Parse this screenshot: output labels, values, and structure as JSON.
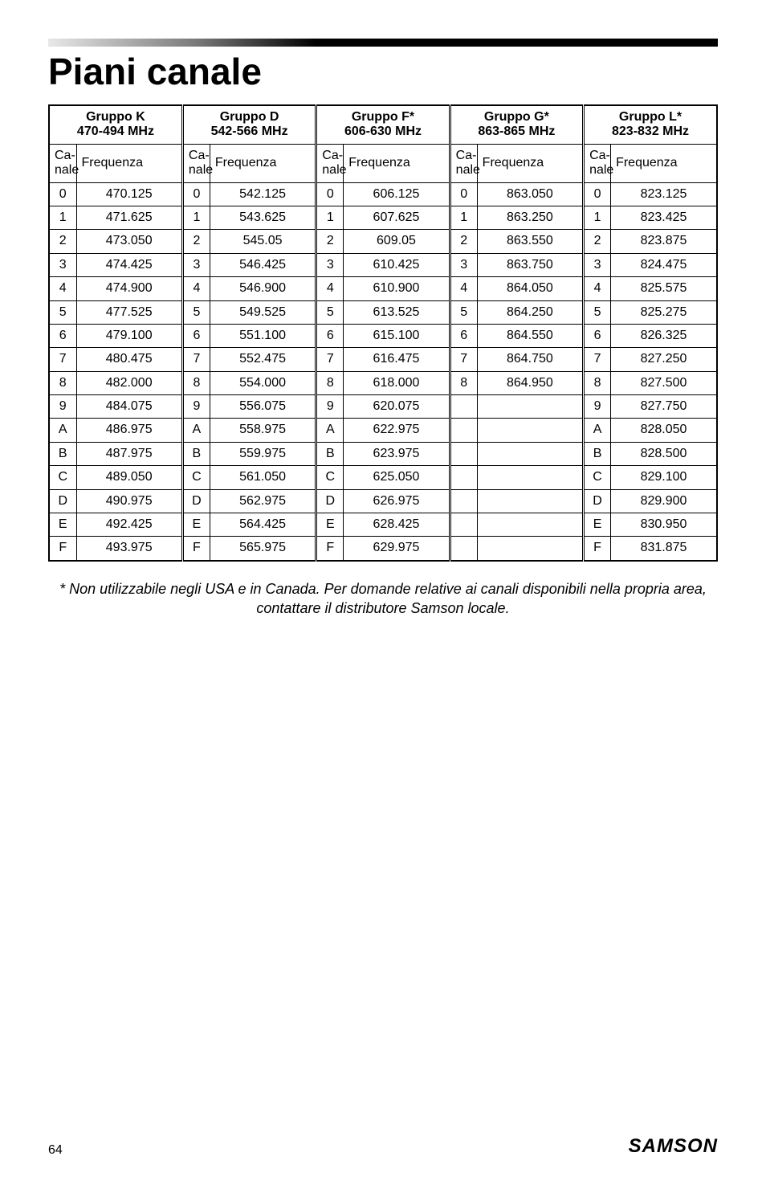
{
  "page": {
    "title": "Piani canale",
    "footnote": "* Non utilizzabile negli USA e in Canada. Per domande relative ai canali disponibili nella propria area, contattare il distributore Samson locale.",
    "page_number": "64",
    "brand": "SAMSON"
  },
  "table": {
    "subheaders": {
      "channel": "Ca-\nnale",
      "frequency": "Frequenza"
    },
    "groups": [
      {
        "label_line1": "Gruppo K",
        "label_line2": "470-494 MHz"
      },
      {
        "label_line1": "Gruppo D",
        "label_line2": "542-566 MHz"
      },
      {
        "label_line1": "Gruppo F*",
        "label_line2": "606-630 MHz"
      },
      {
        "label_line1": "Gruppo G*",
        "label_line2": "863-865 MHz"
      },
      {
        "label_line1": "Gruppo L*",
        "label_line2": "823-832 MHz"
      }
    ],
    "channels": [
      "0",
      "1",
      "2",
      "3",
      "4",
      "5",
      "6",
      "7",
      "8",
      "9",
      "A",
      "B",
      "C",
      "D",
      "E",
      "F"
    ],
    "data": {
      "K": [
        "470.125",
        "471.625",
        "473.050",
        "474.425",
        "474.900",
        "477.525",
        "479.100",
        "480.475",
        "482.000",
        "484.075",
        "486.975",
        "487.975",
        "489.050",
        "490.975",
        "492.425",
        "493.975"
      ],
      "D": [
        "542.125",
        "543.625",
        "545.05",
        "546.425",
        "546.900",
        "549.525",
        "551.100",
        "552.475",
        "554.000",
        "556.075",
        "558.975",
        "559.975",
        "561.050",
        "562.975",
        "564.425",
        "565.975"
      ],
      "F": [
        "606.125",
        "607.625",
        "609.05",
        "610.425",
        "610.900",
        "613.525",
        "615.100",
        "616.475",
        "618.000",
        "620.075",
        "622.975",
        "623.975",
        "625.050",
        "626.975",
        "628.425",
        "629.975"
      ],
      "G": [
        "863.050",
        "863.250",
        "863.550",
        "863.750",
        "864.050",
        "864.250",
        "864.550",
        "864.750",
        "864.950",
        "",
        "",
        "",
        "",
        "",
        "",
        ""
      ],
      "L": [
        "823.125",
        "823.425",
        "823.875",
        "824.475",
        "825.575",
        "825.275",
        "826.325",
        "827.250",
        "827.500",
        "827.750",
        "828.050",
        "828.500",
        "829.100",
        "829.900",
        "830.950",
        "831.875"
      ]
    },
    "styling": {
      "font_size_pt": 12,
      "header_font_weight": 700,
      "border_color": "#000000",
      "background_color": "#ffffff",
      "double_separator_between_groups": true
    }
  }
}
